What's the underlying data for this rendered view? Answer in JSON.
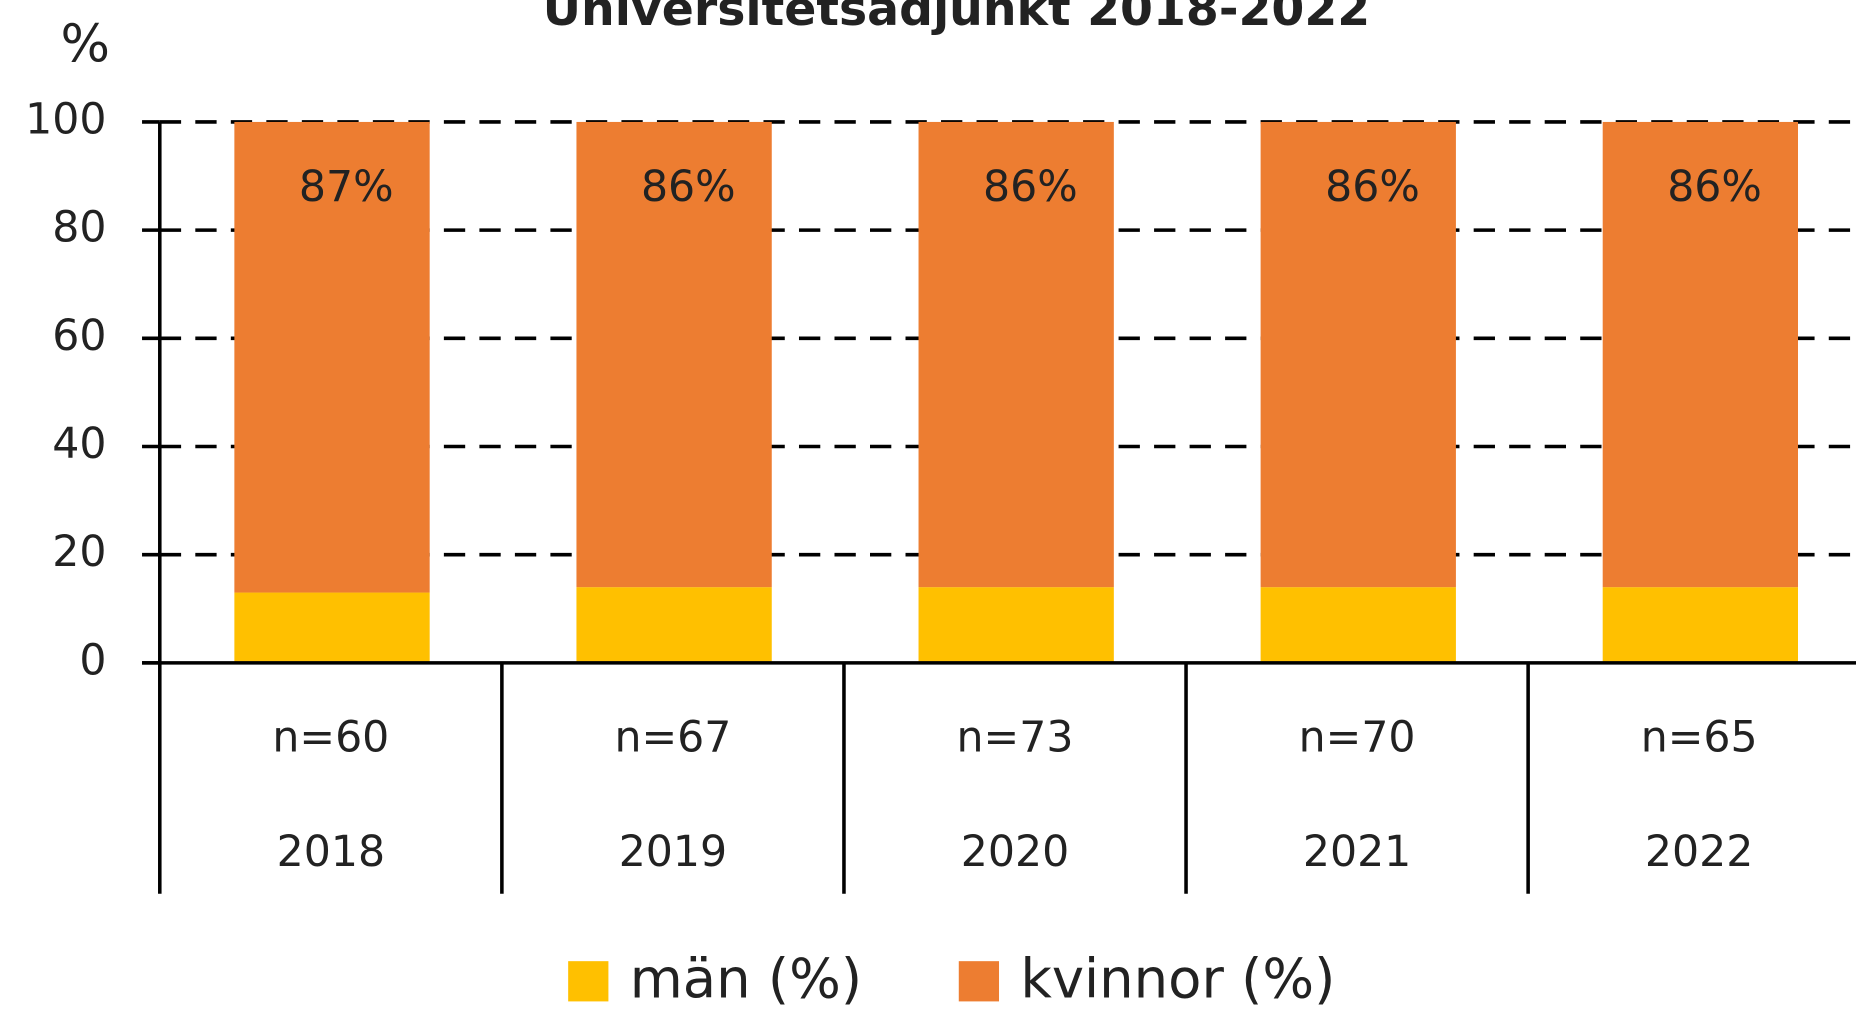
{
  "chart_data": {
    "type": "stacked_bar",
    "title": "Universitetsadjunkt 2018-2022",
    "y_label": "%",
    "categories": [
      "2018",
      "2019",
      "2020",
      "2021",
      "2022"
    ],
    "sample_sizes": [
      "n=60",
      "n=67",
      "n=73",
      "n=70",
      "n=65"
    ],
    "series": [
      {
        "name": "män (%)",
        "color": "#FFC000",
        "values": [
          13,
          14,
          14,
          14,
          14
        ]
      },
      {
        "name": "kvinnor (%)",
        "color": "#ED7D31",
        "values": [
          87,
          86,
          86,
          86,
          86
        ],
        "value_labels": [
          "87%",
          "86%",
          "86%",
          "86%",
          "86%"
        ]
      }
    ],
    "ylim": [
      0,
      100
    ],
    "yticks": [
      0,
      20,
      40,
      60,
      80,
      100
    ],
    "grid": true,
    "legend": "bottom"
  }
}
